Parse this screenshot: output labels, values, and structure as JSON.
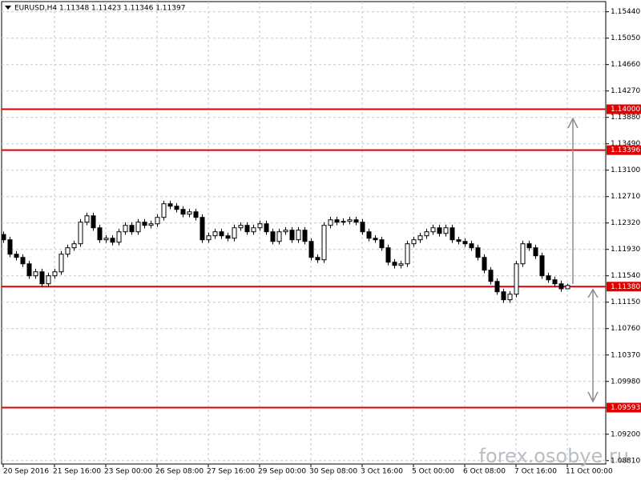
{
  "chart_data": {
    "type": "candlestick",
    "title": "EURUSD,H4  1.11348 1.11423 1.11346 1.11397",
    "watermark": "forex.osobye.ru",
    "categories": [
      "20 Sep 2016",
      null,
      null,
      null,
      null,
      null,
      null,
      null,
      "21 Sep 16:00",
      null,
      null,
      null,
      null,
      null,
      null,
      null,
      "23 Sep 00:00",
      null,
      null,
      null,
      null,
      null,
      null,
      null,
      "26 Sep 08:00",
      null,
      null,
      null,
      null,
      null,
      null,
      null,
      "27 Sep 16:00",
      null,
      null,
      null,
      null,
      null,
      null,
      null,
      "29 Sep 00:00",
      null,
      null,
      null,
      null,
      null,
      null,
      null,
      "30 Sep 08:00",
      null,
      null,
      null,
      null,
      null,
      null,
      null,
      "3 Oct 16:00",
      null,
      null,
      null,
      null,
      null,
      null,
      null,
      "5 Oct 00:00",
      null,
      null,
      null,
      null,
      null,
      null,
      null,
      "6 Oct 08:00",
      null,
      null,
      null,
      null,
      null,
      null,
      null,
      "7 Oct 16:00",
      null,
      null,
      null,
      null,
      null,
      null,
      null,
      "11 Oct 00:00"
    ],
    "open": [
      1.1215,
      1.12072,
      1.11859,
      1.11812,
      1.11717,
      1.1154,
      1.11599,
      1.11422,
      1.1154,
      1.11599,
      1.11859,
      1.11954,
      1.12013,
      1.12332,
      1.12426,
      1.12249,
      1.12072,
      1.12095,
      1.12036,
      1.1219,
      1.12285,
      1.1219,
      1.12332,
      1.12285,
      1.12308,
      1.12403,
      1.12604,
      1.12568,
      1.12521,
      1.1245,
      1.12485,
      1.12403,
      1.12072,
      1.12131,
      1.1219,
      1.12131,
      1.12095,
      1.12249,
      1.12285,
      1.1219,
      1.12249,
      1.12308,
      1.1219,
      1.12048,
      1.1219,
      1.12214,
      1.12072,
      1.12214,
      1.12048,
      1.11812,
      1.11776,
      1.12285,
      1.12367,
      1.12332,
      1.12344,
      1.12367,
      1.12332,
      1.1219,
      1.12095,
      1.12072,
      1.11954,
      1.11741,
      1.11694,
      1.11717,
      1.12013,
      1.12072,
      1.12131,
      1.1219,
      1.12249,
      1.12166,
      1.12249,
      1.12072,
      1.12048,
      1.12013,
      1.11954,
      1.11812,
      1.11623,
      1.11457,
      1.11304,
      1.11186,
      1.11268,
      1.11717,
      1.12013,
      1.11954,
      1.11836,
      1.1154,
      1.11481,
      1.11422,
      1.11348
    ],
    "high": [
      1.12195,
      1.12117,
      1.11904,
      1.11857,
      1.11762,
      1.11644,
      1.11644,
      1.11585,
      1.11644,
      1.11904,
      1.11999,
      1.12058,
      1.12377,
      1.12471,
      1.12471,
      1.12294,
      1.1214,
      1.1214,
      1.12235,
      1.1233,
      1.1233,
      1.12377,
      1.12377,
      1.12353,
      1.12448,
      1.12649,
      1.12649,
      1.12613,
      1.12566,
      1.1253,
      1.1253,
      1.12448,
      1.12176,
      1.12235,
      1.12235,
      1.12176,
      1.12294,
      1.1233,
      1.1233,
      1.12294,
      1.12353,
      1.12353,
      1.12235,
      1.12235,
      1.12259,
      1.12259,
      1.12259,
      1.12259,
      1.12093,
      1.11857,
      1.1233,
      1.12412,
      1.12412,
      1.12389,
      1.12412,
      1.12412,
      1.12377,
      1.12235,
      1.1214,
      1.12117,
      1.11999,
      1.11786,
      1.11762,
      1.12058,
      1.12117,
      1.12176,
      1.12235,
      1.12294,
      1.12294,
      1.12294,
      1.12294,
      1.12117,
      1.12093,
      1.12058,
      1.11999,
      1.11857,
      1.11668,
      1.11502,
      1.11349,
      1.11313,
      1.11762,
      1.12058,
      1.12058,
      1.11999,
      1.11881,
      1.11585,
      1.11526,
      1.11467,
      1.11423
    ],
    "low": [
      1.12027,
      1.11814,
      1.11767,
      1.11672,
      1.11495,
      1.11495,
      1.11377,
      1.11377,
      1.11495,
      1.11554,
      1.11814,
      1.11909,
      1.11968,
      1.12287,
      1.12204,
      1.12027,
      1.12027,
      1.11991,
      1.11991,
      1.12145,
      1.12145,
      1.12145,
      1.1224,
      1.1224,
      1.12263,
      1.12358,
      1.12523,
      1.12476,
      1.12405,
      1.12405,
      1.12358,
      1.12027,
      1.12027,
      1.12086,
      1.12086,
      1.1205,
      1.1205,
      1.12204,
      1.12145,
      1.12145,
      1.12204,
      1.12145,
      1.12003,
      1.12003,
      1.12145,
      1.12027,
      1.12027,
      1.12003,
      1.11767,
      1.11731,
      1.11731,
      1.1224,
      1.12287,
      1.12287,
      1.12299,
      1.12287,
      1.12145,
      1.1205,
      1.12027,
      1.11909,
      1.11696,
      1.11649,
      1.11649,
      1.11672,
      1.11968,
      1.12027,
      1.12086,
      1.12145,
      1.12121,
      1.12121,
      1.12027,
      1.12003,
      1.11968,
      1.11909,
      1.11767,
      1.11578,
      1.11412,
      1.11259,
      1.11141,
      1.11141,
      1.11223,
      1.11672,
      1.11909,
      1.11791,
      1.11495,
      1.11436,
      1.11377,
      1.11303,
      1.11346
    ],
    "close": [
      1.12072,
      1.11859,
      1.11812,
      1.11717,
      1.1154,
      1.11599,
      1.11422,
      1.1154,
      1.11599,
      1.11859,
      1.11954,
      1.12013,
      1.12332,
      1.12426,
      1.12249,
      1.12072,
      1.12095,
      1.12036,
      1.1219,
      1.12285,
      1.1219,
      1.12332,
      1.12285,
      1.12308,
      1.12403,
      1.12604,
      1.12568,
      1.12521,
      1.1245,
      1.12485,
      1.12403,
      1.12072,
      1.12131,
      1.1219,
      1.12131,
      1.12095,
      1.12249,
      1.12285,
      1.1219,
      1.12249,
      1.12308,
      1.1219,
      1.12048,
      1.1219,
      1.12214,
      1.12072,
      1.12214,
      1.12048,
      1.11812,
      1.11776,
      1.12285,
      1.12367,
      1.12332,
      1.12344,
      1.12367,
      1.12332,
      1.1219,
      1.12095,
      1.12072,
      1.11954,
      1.11741,
      1.11694,
      1.11717,
      1.12013,
      1.12072,
      1.12131,
      1.1219,
      1.12249,
      1.12166,
      1.12249,
      1.12072,
      1.12048,
      1.12013,
      1.11954,
      1.11812,
      1.11623,
      1.11457,
      1.11304,
      1.11186,
      1.11268,
      1.11717,
      1.12013,
      1.11954,
      1.11836,
      1.1154,
      1.11481,
      1.11422,
      1.11348,
      1.11397
    ],
    "up_color": "#ffffff",
    "down_color": "#000000",
    "wick_color": "#000000",
    "levels": [
      {
        "value": 1.14,
        "label": "1.14000"
      },
      {
        "value": 1.13396,
        "label": "1.13396"
      },
      {
        "value": 1.1138,
        "label": "1.11380"
      },
      {
        "value": 1.09593,
        "label": "1.09593"
      }
    ],
    "level_color": "#e00000",
    "ylim": [
      1.0876,
      1.1559
    ],
    "yticks": [
      {
        "value": 1.1544,
        "label": "1.15440"
      },
      {
        "value": 1.1505,
        "label": "1.15050"
      },
      {
        "value": 1.1466,
        "label": "1.14660"
      },
      {
        "value": 1.1427,
        "label": "1.14270"
      },
      {
        "value": 1.1388,
        "label": "1.13880"
      },
      {
        "value": 1.1349,
        "label": "1.13490"
      },
      {
        "value": 1.131,
        "label": "1.13100"
      },
      {
        "value": 1.1271,
        "label": "1.12710"
      },
      {
        "value": 1.1232,
        "label": "1.12320"
      },
      {
        "value": 1.1193,
        "label": "1.11930"
      },
      {
        "value": 1.1154,
        "label": "1.11540"
      },
      {
        "value": 1.1115,
        "label": "1.11150"
      },
      {
        "value": 1.1076,
        "label": "1.10760"
      },
      {
        "value": 1.1037,
        "label": "1.10370"
      },
      {
        "value": 1.0998,
        "label": "1.09980"
      },
      {
        "value": 1.0959,
        "label": "1.09590"
      },
      {
        "value": 1.092,
        "label": "1.09200"
      },
      {
        "value": 1.0881,
        "label": "1.08810"
      }
    ],
    "grid": true
  }
}
